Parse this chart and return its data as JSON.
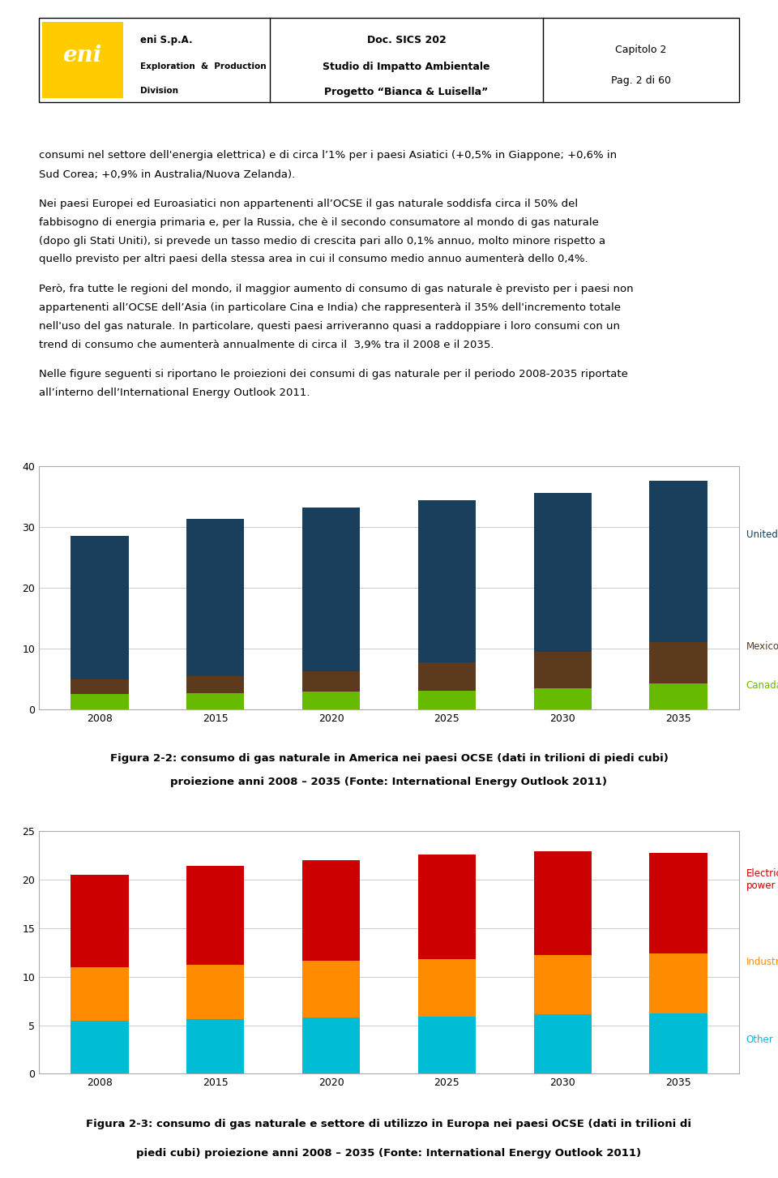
{
  "header": {
    "company": "eni S.p.A.",
    "subtitle1": "Exploration  &  Production",
    "subtitle2": "Division",
    "doc_title": "Doc. SICS 202",
    "doc_subtitle1": "Studio di Impatto Ambientale",
    "doc_subtitle2": "Progetto “Bianca & Luisella”",
    "chapter": "Capitolo 2",
    "page": "Pag. 2 di 60"
  },
  "body_text": [
    "consumi nel settore dell'energia elettrica) e di circa l’1% per i paesi Asiatici (+0,5% in Giappone; +0,6% in",
    "Sud Corea; +0,9% in Australia/Nuova Zelanda).",
    "",
    "Nei paesi Europei ed Euroasiatici non appartenenti all’OCSE il gas naturale soddisfa circa il 50% del",
    "fabbisogno di energia primaria e, per la Russia, che è il secondo consumatore al mondo di gas naturale",
    "(dopo gli Stati Uniti), si prevede un tasso medio di crescita pari allo 0,1% annuo, molto minore rispetto a",
    "quello previsto per altri paesi della stessa area in cui il consumo medio annuo aumenterà dello 0,4%.",
    "",
    "Però, fra tutte le regioni del mondo, il maggior aumento di consumo di gas naturale è previsto per i paesi non",
    "appartenenti all’OCSE dell’Asia (in particolare Cina e India) che rappresenterà il 35% dell'incremento totale",
    "nell'uso del gas naturale. In particolare, questi paesi arriveranno quasi a raddoppiare i loro consumi con un",
    "trend di consumo che aumenterà annualmente di circa il  3,9% tra il 2008 e il 2035.",
    "",
    "Nelle figure seguenti si riportano le proiezioni dei consumi di gas naturale per il periodo 2008-2035 riportate",
    "all’interno dell’International Energy Outlook 2011."
  ],
  "chart1": {
    "title_line1": "Figura 2-2: consumo di gas naturale in America nei paesi OCSE (dati in trilioni di piedi cubi)",
    "title_line2": "proiezione anni 2008 – 2035 (Fonte: International Energy Outlook 2011)",
    "years": [
      2008,
      2015,
      2020,
      2025,
      2030,
      2035
    ],
    "canada": [
      2.5,
      2.7,
      2.9,
      3.1,
      3.5,
      4.3
    ],
    "mexico_chile": [
      2.5,
      2.8,
      3.4,
      4.6,
      6.0,
      6.8
    ],
    "united_states": [
      23.6,
      25.9,
      26.9,
      26.7,
      26.2,
      26.6
    ],
    "colors": {
      "canada": "#66bb00",
      "mexico_chile": "#5c3a1e",
      "united_states": "#1a3f5c"
    },
    "ylim": [
      0,
      40
    ],
    "yticks": [
      0,
      10,
      20,
      30,
      40
    ]
  },
  "chart2": {
    "title_line1": "Figura 2-3: consumo di gas naturale e settore di utilizzo in Europa nei paesi OCSE (dati in trilioni di",
    "title_line2": "piedi cubi) proiezione anni 2008 – 2035 (Fonte: International Energy Outlook 2011)",
    "years": [
      2008,
      2015,
      2020,
      2025,
      2030,
      2035
    ],
    "other": [
      5.5,
      5.6,
      5.8,
      5.9,
      6.1,
      6.2
    ],
    "industrial": [
      5.5,
      5.6,
      5.8,
      5.9,
      6.1,
      6.2
    ],
    "electric_power": [
      9.5,
      10.2,
      10.4,
      10.8,
      10.7,
      10.3
    ],
    "colors": {
      "other": "#00bcd4",
      "industrial": "#ff8c00",
      "electric_power": "#cc0000"
    },
    "ylim": [
      0,
      25
    ],
    "yticks": [
      0,
      5,
      10,
      15,
      20,
      25
    ]
  },
  "bg_color": "#ffffff",
  "text_color": "#000000",
  "font_size_body": 9.5,
  "font_size_caption": 9.5,
  "eni_yellow": "#ffcc00"
}
